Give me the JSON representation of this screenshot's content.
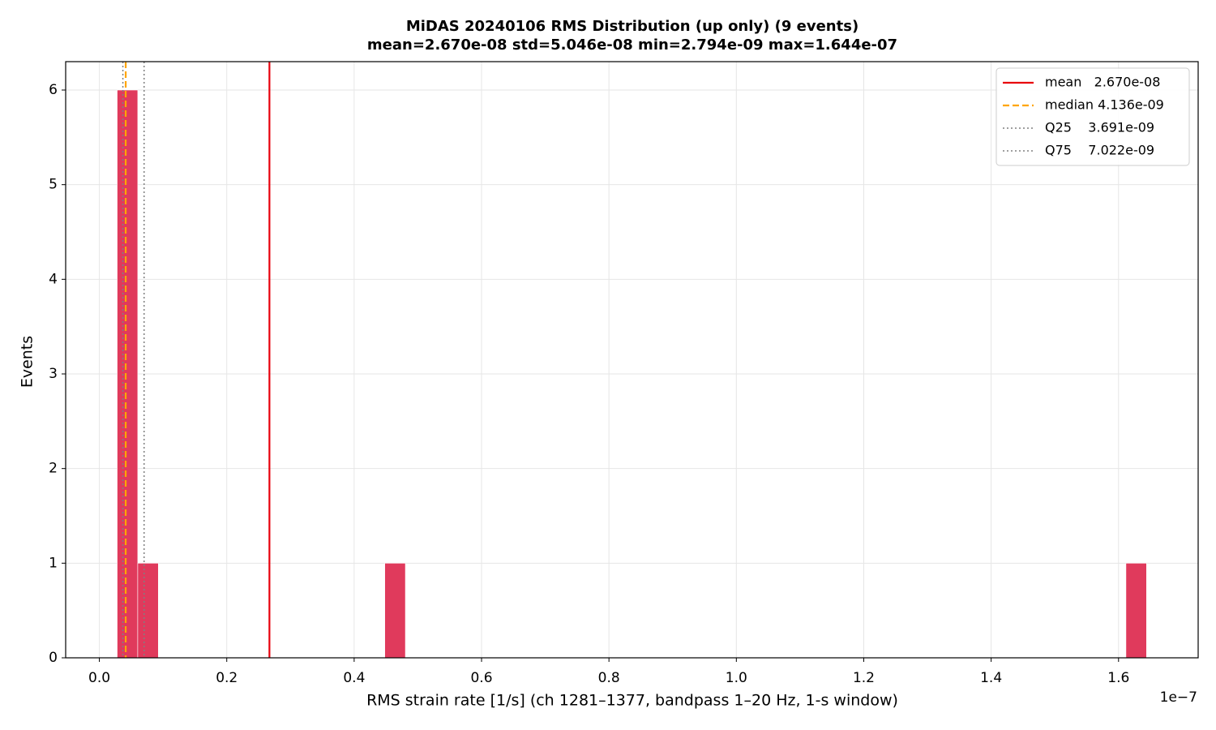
{
  "chart_data": {
    "type": "histogram",
    "title": "MiDAS 20240106  RMS Distribution  (up only)  (9 events)",
    "subtitle": "mean=2.670e-08  std=5.046e-08  min=2.794e-09  max=1.644e-07",
    "x_label": "RMS strain rate [1/s]  (ch 1281–1377, bandpass 1–20 Hz, 1-s window)",
    "x_offset_label": "1e−7",
    "y_label": "Events",
    "color": "#e03a5c",
    "bins": [
      2.794e-09,
      6.026e-09,
      9.258e-09,
      1.249e-08,
      1.5722e-08,
      1.8954e-08,
      2.2186e-08,
      2.5418e-08,
      2.865e-08,
      3.1882e-08,
      3.5114e-08,
      3.8346e-08,
      4.1578e-08,
      4.481e-08,
      4.8042e-08,
      5.1274e-08,
      5.4506e-08,
      5.7738e-08,
      6.097e-08,
      6.4202e-08,
      6.7434e-08,
      7.0666e-08,
      7.3898e-08,
      7.713e-08,
      8.0362e-08,
      8.3594e-08,
      8.6826e-08,
      9.0058e-08,
      9.329e-08,
      9.6522e-08,
      9.9754e-08,
      1.02986e-07,
      1.06218e-07,
      1.0945e-07,
      1.12682e-07,
      1.15914e-07,
      1.19146e-07,
      1.22378e-07,
      1.2561e-07,
      1.28842e-07,
      1.32074e-07,
      1.35306e-07,
      1.38538e-07,
      1.4177e-07,
      1.45002e-07,
      1.48234e-07,
      1.51466e-07,
      1.54698e-07,
      1.5793e-07,
      1.61162e-07,
      1.64394e-07
    ],
    "values": [
      6,
      1,
      0,
      0,
      0,
      0,
      0,
      0,
      0,
      0,
      0,
      0,
      0,
      1,
      0,
      0,
      0,
      0,
      0,
      0,
      0,
      0,
      0,
      0,
      0,
      0,
      0,
      0,
      0,
      0,
      0,
      0,
      0,
      0,
      0,
      0,
      0,
      0,
      0,
      0,
      0,
      0,
      0,
      0,
      0,
      0,
      0,
      0,
      0,
      1
    ],
    "xlim": [
      -5.29e-09,
      1.725e-07
    ],
    "xticks": [
      {
        "value": 0,
        "label": "0.0"
      },
      {
        "value": 2e-08,
        "label": "0.2"
      },
      {
        "value": 4e-08,
        "label": "0.4"
      },
      {
        "value": 6e-08,
        "label": "0.6"
      },
      {
        "value": 8e-08,
        "label": "0.8"
      },
      {
        "value": 1e-07,
        "label": "1.0"
      },
      {
        "value": 1.2e-07,
        "label": "1.2"
      },
      {
        "value": 1.4e-07,
        "label": "1.4"
      },
      {
        "value": 1.6e-07,
        "label": "1.6"
      }
    ],
    "ylim": [
      0,
      6.3
    ],
    "yticks": [
      0,
      1,
      2,
      3,
      4,
      5,
      6
    ],
    "grid": true,
    "legend_position": "upper right",
    "reference_lines": [
      {
        "label": "mean   2.670e-08",
        "value": 2.67e-08,
        "color": "#e8000b",
        "style": "solid"
      },
      {
        "label": "median 4.136e-09",
        "value": 4.136e-09,
        "color": "#ffa500",
        "style": "dashed"
      },
      {
        "label": "Q25    3.691e-09",
        "value": 3.691e-09,
        "color": "#808080",
        "style": "dotted"
      },
      {
        "label": "Q75    7.022e-09",
        "value": 7.022e-09,
        "color": "#808080",
        "style": "dotted"
      }
    ]
  }
}
